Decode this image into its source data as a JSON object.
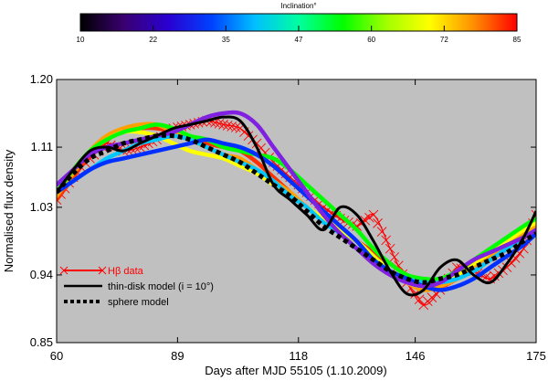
{
  "chart_data": {
    "type": "line",
    "title": "",
    "xlabel": "Days after MJD 55105 (1.10.2009)",
    "ylabel": "Normalised flux density",
    "xlim": [
      60,
      175
    ],
    "ylim": [
      0.85,
      1.2
    ],
    "x_ticks": [
      60,
      89,
      118,
      146,
      175
    ],
    "x_tick_labels": [
      "60",
      "89",
      "118",
      "146",
      "175"
    ],
    "y_ticks": [
      0.85,
      0.94,
      1.03,
      1.11,
      1.2
    ],
    "y_tick_labels": [
      "0.85",
      "0.94",
      "1.03",
      "1.11",
      "1.20"
    ],
    "background": "#c0c0c0",
    "grid": false,
    "legend_position": "bottom-left",
    "colorbar": {
      "label": "Inclination°",
      "ticks": [
        "10",
        "22",
        "35",
        "47",
        "60",
        "72",
        "85"
      ],
      "colors": [
        "#000000",
        "#3a0070",
        "#2a00d0",
        "#0040ff",
        "#00c0ff",
        "#00ffa0",
        "#00ff00",
        "#a0ff00",
        "#ffff00",
        "#ff9000",
        "#ff0000"
      ]
    },
    "x": [
      60,
      64,
      68,
      72,
      76,
      80,
      84,
      88,
      92,
      96,
      100,
      104,
      108,
      112,
      116,
      120,
      124,
      128,
      132,
      136,
      140,
      144,
      148,
      152,
      156,
      160,
      164,
      168,
      172,
      175
    ],
    "series": [
      {
        "name": "Hβ data",
        "color": "#ff0000",
        "style": "crosses",
        "values": [
          1.04,
          1.07,
          1.095,
          1.115,
          1.105,
          1.11,
          1.12,
          1.135,
          1.14,
          1.145,
          1.14,
          1.135,
          1.115,
          1.09,
          1.07,
          1.05,
          1.03,
          1.015,
          1.005,
          1.02,
          0.975,
          0.93,
          0.9,
          0.92,
          0.95,
          0.945,
          0.935,
          0.95,
          0.975,
          1.02
        ]
      },
      {
        "name": "thin-disk model (i = 10°)",
        "color": "#000000",
        "style": "solid",
        "values": [
          1.05,
          1.08,
          1.105,
          1.11,
          1.105,
          1.115,
          1.125,
          1.135,
          1.14,
          1.145,
          1.15,
          1.145,
          1.11,
          1.06,
          1.04,
          1.02,
          1.0,
          1.03,
          1.02,
          0.985,
          0.945,
          0.915,
          0.92,
          0.95,
          0.96,
          0.94,
          0.93,
          0.955,
          0.99,
          1.025
        ]
      },
      {
        "name": "sphere model",
        "color": "#000000",
        "style": "dotted",
        "values": [
          1.05,
          1.075,
          1.095,
          1.105,
          1.115,
          1.12,
          1.125,
          1.125,
          1.12,
          1.11,
          1.1,
          1.09,
          1.075,
          1.06,
          1.045,
          1.025,
          1.005,
          0.99,
          0.975,
          0.96,
          0.945,
          0.935,
          0.93,
          0.935,
          0.94,
          0.95,
          0.96,
          0.97,
          0.985,
          0.995
        ]
      },
      {
        "name": "i=85",
        "color": "#ff3000",
        "style": "solid",
        "values": [
          1.04,
          1.07,
          1.1,
          1.12,
          1.13,
          1.135,
          1.135,
          1.13,
          1.12,
          1.115,
          1.11,
          1.105,
          1.09,
          1.07,
          1.05,
          1.03,
          1.015,
          1.0,
          0.985,
          0.97,
          0.955,
          0.94,
          0.93,
          0.925,
          0.935,
          0.95,
          0.96,
          0.975,
          0.99,
          1.0
        ]
      },
      {
        "name": "i=72",
        "color": "#ffa000",
        "style": "solid",
        "values": [
          1.045,
          1.075,
          1.105,
          1.125,
          1.135,
          1.14,
          1.14,
          1.13,
          1.12,
          1.11,
          1.1,
          1.095,
          1.08,
          1.065,
          1.05,
          1.03,
          1.015,
          1.0,
          0.985,
          0.965,
          0.945,
          0.93,
          0.92,
          0.925,
          0.935,
          0.95,
          0.965,
          0.98,
          0.995,
          1.005
        ]
      },
      {
        "name": "i=60",
        "color": "#ffff00",
        "style": "solid",
        "values": [
          1.05,
          1.08,
          1.105,
          1.12,
          1.13,
          1.13,
          1.125,
          1.115,
          1.105,
          1.1,
          1.095,
          1.085,
          1.075,
          1.06,
          1.045,
          1.03,
          1.015,
          1.0,
          0.985,
          0.965,
          0.945,
          0.93,
          0.925,
          0.93,
          0.94,
          0.955,
          0.97,
          0.985,
          1.0,
          1.01
        ]
      },
      {
        "name": "i=47",
        "color": "#00ff00",
        "style": "solid",
        "values": [
          1.05,
          1.08,
          1.105,
          1.12,
          1.13,
          1.135,
          1.14,
          1.135,
          1.125,
          1.12,
          1.11,
          1.105,
          1.1,
          1.095,
          1.08,
          1.06,
          1.04,
          1.02,
          1.0,
          0.975,
          0.955,
          0.94,
          0.935,
          0.935,
          0.945,
          0.96,
          0.975,
          0.99,
          1.005,
          1.015
        ]
      },
      {
        "name": "i=35",
        "color": "#00c8ff",
        "style": "solid",
        "values": [
          1.05,
          1.065,
          1.08,
          1.095,
          1.105,
          1.115,
          1.12,
          1.125,
          1.12,
          1.11,
          1.1,
          1.09,
          1.08,
          1.065,
          1.045,
          1.03,
          1.01,
          0.995,
          0.975,
          0.96,
          0.945,
          0.935,
          0.93,
          0.93,
          0.935,
          0.945,
          0.96,
          0.975,
          0.99,
          1.0
        ]
      },
      {
        "name": "i=22",
        "color": "#0030ff",
        "style": "solid",
        "values": [
          1.05,
          1.065,
          1.08,
          1.09,
          1.095,
          1.1,
          1.105,
          1.11,
          1.115,
          1.12,
          1.115,
          1.11,
          1.1,
          1.085,
          1.065,
          1.045,
          1.025,
          1.005,
          0.985,
          0.96,
          0.945,
          0.935,
          0.925,
          0.92,
          0.925,
          0.935,
          0.95,
          0.965,
          0.98,
          0.995
        ]
      },
      {
        "name": "i=15",
        "color": "#8020e0",
        "style": "solid",
        "values": [
          1.06,
          1.08,
          1.1,
          1.11,
          1.115,
          1.12,
          1.125,
          1.13,
          1.14,
          1.15,
          1.155,
          1.155,
          1.14,
          1.11,
          1.08,
          1.05,
          1.02,
          0.995,
          0.975,
          0.955,
          0.94,
          0.93,
          0.925,
          0.93,
          0.945,
          0.96,
          0.97,
          0.98,
          0.99,
          1.0
        ]
      }
    ]
  }
}
